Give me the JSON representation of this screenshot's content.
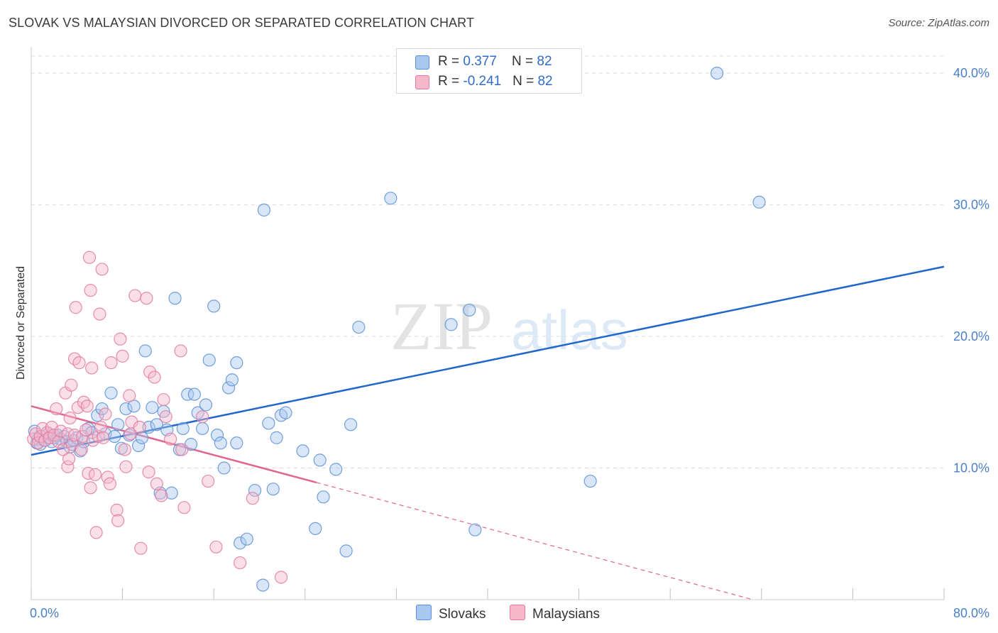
{
  "header": {
    "title": "SLOVAK VS MALAYSIAN DIVORCED OR SEPARATED CORRELATION CHART",
    "source": "Source: ZipAtlas.com"
  },
  "legend": {
    "rows": [
      {
        "r_label": "R = ",
        "r_value": "0.377",
        "n_label": "N = ",
        "n_value": "82",
        "color": "#a8c8f0"
      },
      {
        "r_label": "R = ",
        "r_value": "-0.241",
        "n_label": "N = ",
        "n_value": "82",
        "color": "#f7b8cb"
      }
    ]
  },
  "colors": {
    "slovak_fill": "#a8c8f0",
    "slovak_stroke": "#5b8fd6",
    "slovak_line": "#2166cc",
    "malaysian_fill": "#f7b8cb",
    "malaysian_stroke": "#e27a9c",
    "malaysian_line": "#e0668f",
    "grid": "#dcdcdc",
    "tick_label": "#4a7fcb"
  },
  "chart_data": {
    "type": "scatter",
    "title": "SLOVAK VS MALAYSIAN DIVORCED OR SEPARATED CORRELATION CHART",
    "xlabel": "",
    "ylabel": "Divorced or Separated",
    "xlim": [
      0,
      80
    ],
    "ylim": [
      0,
      42
    ],
    "x_tick_labels": [
      "0.0%",
      "80.0%"
    ],
    "y_ticks": [
      10,
      20,
      30,
      40
    ],
    "y_tick_labels": [
      "10.0%",
      "20.0%",
      "30.0%",
      "40.0%"
    ],
    "grid": true,
    "legend_position": "top-center",
    "watermark": "ZIPatlas",
    "series": [
      {
        "name": "Slovaks",
        "color": "#a8c8f0",
        "trend": {
          "x": [
            0,
            80
          ],
          "y": [
            11.0,
            25.3
          ]
        },
        "points": [
          [
            0.3,
            12.8
          ],
          [
            0.5,
            11.9
          ],
          [
            0.6,
            12.2
          ],
          [
            0.8,
            11.8
          ],
          [
            1.0,
            12.4
          ],
          [
            1.2,
            12.1
          ],
          [
            1.5,
            12.6
          ],
          [
            1.8,
            12.0
          ],
          [
            2.0,
            12.3
          ],
          [
            2.3,
            12.5
          ],
          [
            2.6,
            12.2
          ],
          [
            2.9,
            12.4
          ],
          [
            3.1,
            12.0
          ],
          [
            3.4,
            11.6
          ],
          [
            3.7,
            12.1
          ],
          [
            4.0,
            12.3
          ],
          [
            4.3,
            11.3
          ],
          [
            4.6,
            12.0
          ],
          [
            5.0,
            13.0
          ],
          [
            5.3,
            12.7
          ],
          [
            5.8,
            14.0
          ],
          [
            6.2,
            14.5
          ],
          [
            6.5,
            12.6
          ],
          [
            7.0,
            15.7
          ],
          [
            7.3,
            12.4
          ],
          [
            7.6,
            13.3
          ],
          [
            7.9,
            11.5
          ],
          [
            8.3,
            14.5
          ],
          [
            8.6,
            12.5
          ],
          [
            9.0,
            14.7
          ],
          [
            9.4,
            11.7
          ],
          [
            9.7,
            12.3
          ],
          [
            10.0,
            18.9
          ],
          [
            10.3,
            13.1
          ],
          [
            10.6,
            14.6
          ],
          [
            11.0,
            13.3
          ],
          [
            11.3,
            8.1
          ],
          [
            11.6,
            14.3
          ],
          [
            11.9,
            12.9
          ],
          [
            12.3,
            8.1
          ],
          [
            12.6,
            22.9
          ],
          [
            13.0,
            11.4
          ],
          [
            13.3,
            13.0
          ],
          [
            13.7,
            15.6
          ],
          [
            14.0,
            11.8
          ],
          [
            14.3,
            15.6
          ],
          [
            14.6,
            14.2
          ],
          [
            15.0,
            13.0
          ],
          [
            15.3,
            14.8
          ],
          [
            15.6,
            18.2
          ],
          [
            16.0,
            22.3
          ],
          [
            16.3,
            12.5
          ],
          [
            16.6,
            11.9
          ],
          [
            16.9,
            10.0
          ],
          [
            17.3,
            16.1
          ],
          [
            17.6,
            16.7
          ],
          [
            18.0,
            11.9
          ],
          [
            18.3,
            4.3
          ],
          [
            18.9,
            4.6
          ],
          [
            18.0,
            18.0
          ],
          [
            19.6,
            8.3
          ],
          [
            20.4,
            29.6
          ],
          [
            20.8,
            13.4
          ],
          [
            21.2,
            8.4
          ],
          [
            21.5,
            12.3
          ],
          [
            21.9,
            14.0
          ],
          [
            22.3,
            14.2
          ],
          [
            20.3,
            1.1
          ],
          [
            23.8,
            11.3
          ],
          [
            24.9,
            5.4
          ],
          [
            25.3,
            10.6
          ],
          [
            25.6,
            7.8
          ],
          [
            26.7,
            9.9
          ],
          [
            27.6,
            3.7
          ],
          [
            28.0,
            13.3
          ],
          [
            28.7,
            20.7
          ],
          [
            31.5,
            30.5
          ],
          [
            36.8,
            20.9
          ],
          [
            38.4,
            22.0
          ],
          [
            38.9,
            5.3
          ],
          [
            49.0,
            9.0
          ],
          [
            60.1,
            40.0
          ],
          [
            63.8,
            30.2
          ]
        ]
      },
      {
        "name": "Malaysians",
        "color": "#f7b8cb",
        "trend": {
          "x": [
            0,
            25
          ],
          "y": [
            14.7,
            8.9
          ]
        },
        "trend_extension": {
          "x": [
            25,
            80
          ],
          "y": [
            8.9,
            -3.9
          ]
        },
        "points": [
          [
            0.2,
            12.2
          ],
          [
            0.4,
            12.6
          ],
          [
            0.6,
            11.9
          ],
          [
            0.8,
            12.4
          ],
          [
            1.0,
            13.0
          ],
          [
            1.2,
            12.1
          ],
          [
            1.4,
            12.7
          ],
          [
            1.6,
            12.3
          ],
          [
            1.8,
            13.1
          ],
          [
            2.0,
            12.5
          ],
          [
            2.2,
            14.5
          ],
          [
            2.4,
            12.0
          ],
          [
            2.6,
            12.8
          ],
          [
            2.8,
            11.4
          ],
          [
            3.0,
            15.7
          ],
          [
            3.2,
            10.1
          ],
          [
            3.4,
            13.8
          ],
          [
            3.2,
            12.6
          ],
          [
            3.3,
            10.7
          ],
          [
            3.5,
            16.3
          ],
          [
            3.6,
            11.8
          ],
          [
            3.8,
            12.5
          ],
          [
            3.8,
            18.3
          ],
          [
            3.9,
            22.2
          ],
          [
            4.1,
            14.6
          ],
          [
            4.2,
            18.0
          ],
          [
            4.4,
            11.4
          ],
          [
            4.5,
            12.4
          ],
          [
            4.6,
            15.0
          ],
          [
            4.8,
            12.9
          ],
          [
            4.9,
            14.7
          ],
          [
            5.0,
            9.6
          ],
          [
            5.1,
            26.0
          ],
          [
            5.2,
            23.5
          ],
          [
            5.3,
            17.6
          ],
          [
            5.4,
            12.1
          ],
          [
            5.2,
            8.5
          ],
          [
            5.6,
            9.5
          ],
          [
            5.7,
            5.1
          ],
          [
            5.9,
            12.4
          ],
          [
            6.0,
            21.7
          ],
          [
            6.1,
            13.1
          ],
          [
            6.2,
            25.1
          ],
          [
            6.3,
            12.3
          ],
          [
            6.5,
            14.1
          ],
          [
            6.7,
            9.3
          ],
          [
            6.9,
            8.8
          ],
          [
            7.0,
            18.0
          ],
          [
            7.5,
            6.8
          ],
          [
            7.6,
            6.0
          ],
          [
            7.8,
            19.8
          ],
          [
            8.0,
            18.5
          ],
          [
            8.2,
            11.4
          ],
          [
            8.3,
            10.1
          ],
          [
            8.6,
            15.5
          ],
          [
            8.7,
            12.6
          ],
          [
            8.8,
            13.5
          ],
          [
            9.1,
            23.1
          ],
          [
            9.5,
            13.1
          ],
          [
            9.6,
            3.9
          ],
          [
            10.1,
            22.9
          ],
          [
            10.3,
            9.7
          ],
          [
            10.4,
            17.3
          ],
          [
            10.8,
            16.9
          ],
          [
            11.0,
            8.8
          ],
          [
            11.4,
            7.9
          ],
          [
            11.6,
            15.2
          ],
          [
            11.8,
            13.9
          ],
          [
            12.2,
            12.2
          ],
          [
            13.1,
            18.9
          ],
          [
            13.2,
            11.4
          ],
          [
            13.4,
            7.0
          ],
          [
            15.0,
            13.9
          ],
          [
            15.5,
            9.0
          ],
          [
            16.2,
            4.0
          ],
          [
            18.3,
            2.8
          ],
          [
            19.4,
            7.7
          ],
          [
            21.9,
            1.7
          ]
        ]
      }
    ]
  },
  "bottom_legend": {
    "items": [
      {
        "label": "Slovaks",
        "color": "#a8c8f0"
      },
      {
        "label": "Malaysians",
        "color": "#f7b8cb"
      }
    ]
  }
}
